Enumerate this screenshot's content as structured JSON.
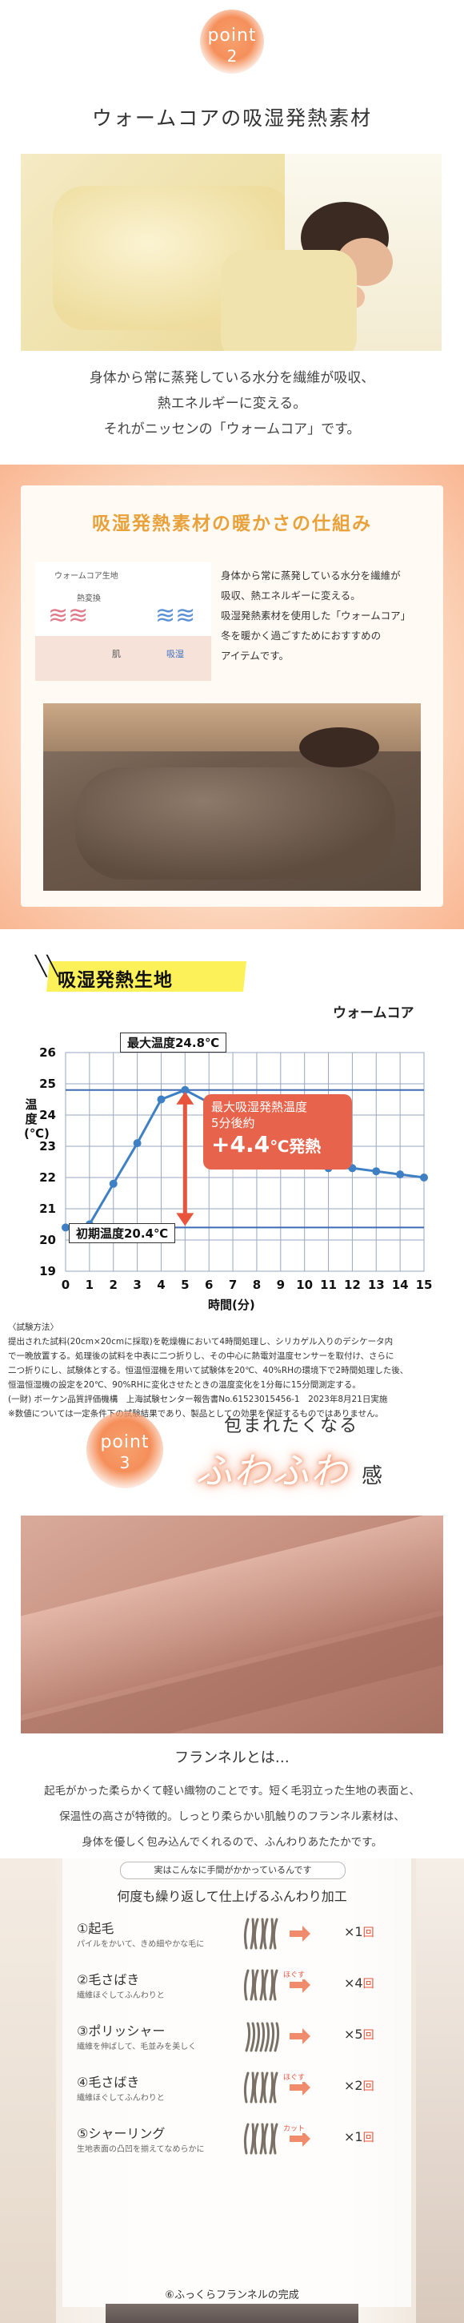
{
  "point2": {
    "badge_word": "point",
    "badge_num": "2",
    "title": "ウォームコアの吸湿発熱素材",
    "lines": [
      "身体から常に蒸発している水分を繊維が吸収、",
      "熱エネルギーに変える。",
      "それがニッセンの「ウォームコア」です。"
    ]
  },
  "mechanism": {
    "title": "吸湿発熱素材の暖かさの仕組み",
    "diagram_labels": {
      "core": "ウォームコア生地",
      "heat": "熱変換",
      "skin": "肌",
      "absorb": "吸湿"
    },
    "text": [
      "身体から常に蒸発している水分を繊維が",
      "吸収、熱エネルギーに変える。",
      "吸湿発熱素材を使用した「ウォームコア」",
      "冬を暖かく過ごすためにおすすめの",
      "アイテムです。"
    ]
  },
  "chart_section": {
    "heading": "吸湿発熱生地",
    "legend": "ウォームコア",
    "ylabel": "温度(℃)",
    "xlabel": "時間(分)",
    "max_label": "最大温度24.8℃",
    "init_label": "初期温度20.4℃",
    "callout_line1": "最大吸湿発熱温度",
    "callout_line2": "5分後約",
    "callout_big": "+4.4",
    "callout_unit": "℃発熱",
    "caption_lines": [
      "〈試験方法〉",
      "提出された試料(20cm×20cmに採取)を乾燥機において4時間処理し、シリカゲル入りのデシケータ内",
      "で一晩放置する。処理後の試料を中表に二つ折りし、その中心に熱電対温度センサーを取付け、さらに",
      "二つ折りにし、試験体とする。恒温恒湿機を用いて試験体を20℃、40%RHの環境下で2時間処理した後、",
      "恒温恒湿機の設定を20℃、90%RHに変化させたときの温度変化を1分毎に15分間測定する。",
      "(一財) ボーケン品質評価機構　上海試験センター報告書No.61523015456-1　2023年8月21日実施",
      "※数値については一定条件下の試験結果であり、製品としての効果を保証するものではありません。"
    ]
  },
  "chart_data": {
    "type": "line",
    "title": "吸湿発熱生地",
    "xlabel": "時間(分)",
    "ylabel": "温度(℃)",
    "x": [
      0,
      1,
      2,
      3,
      4,
      5,
      6,
      7,
      8,
      9,
      10,
      11,
      12,
      13,
      14,
      15
    ],
    "series": [
      {
        "name": "ウォームコア",
        "values": [
          20.4,
          20.5,
          21.8,
          23.1,
          24.5,
          24.8,
          24.4,
          23.8,
          23.0,
          22.6,
          22.4,
          22.3,
          22.3,
          22.2,
          22.1,
          22.0
        ]
      }
    ],
    "xlim": [
      0,
      15
    ],
    "ylim": [
      19,
      26
    ],
    "xticks": [
      0,
      1,
      2,
      3,
      4,
      5,
      6,
      7,
      8,
      9,
      10,
      11,
      12,
      13,
      14,
      15
    ],
    "yticks": [
      19,
      20,
      21,
      22,
      23,
      24,
      25,
      26
    ],
    "grid": true,
    "colors": {
      "line": "#3f7fc4",
      "ref": "#3d6bb5",
      "arrow": "#e8543c",
      "callout": "#e8634b"
    }
  },
  "point3": {
    "badge_word": "point",
    "badge_num": "3",
    "tag1": "包まれたくなる",
    "fuwa": "ふわふわ",
    "kan": "感",
    "flannel_title": "フランネルとは…",
    "lines": [
      "起毛がかった柔らかくて軽い織物のことです。短く毛羽立った生地の表面と、",
      "保温性の高さが特徴的。しっとり柔らかい肌触りのフランネル素材は、",
      "身体を優しく包み込んでくれるので、ふんわりあたたかです。"
    ]
  },
  "process": {
    "tag": "実はこんなに手間がかかっているんです",
    "title": "何度も繰り返して仕上げるふんわり加工",
    "steps": [
      {
        "name": "①起毛",
        "desc": "パイルをかいて、きめ細やかな毛に",
        "times": "×1",
        "unit": "回"
      },
      {
        "name": "②毛さばき",
        "desc": "繊維ほぐしてふんわりと",
        "tag": "ほぐす",
        "times": "×4",
        "unit": "回"
      },
      {
        "name": "③ポリッシャー",
        "desc": "繊維を伸ばして、毛並みを美しく",
        "times": "×5",
        "unit": "回"
      },
      {
        "name": "④毛さばき",
        "desc": "繊維ほぐしてふんわりと",
        "tag": "ほぐす",
        "times": "×2",
        "unit": "回"
      },
      {
        "name": "⑤シャーリング",
        "desc": "生地表面の凸凹を揃えてなめらかに",
        "tag": "カット",
        "times": "×1",
        "unit": "回"
      }
    ],
    "finish": "⑥ふっくらフランネルの完成"
  }
}
